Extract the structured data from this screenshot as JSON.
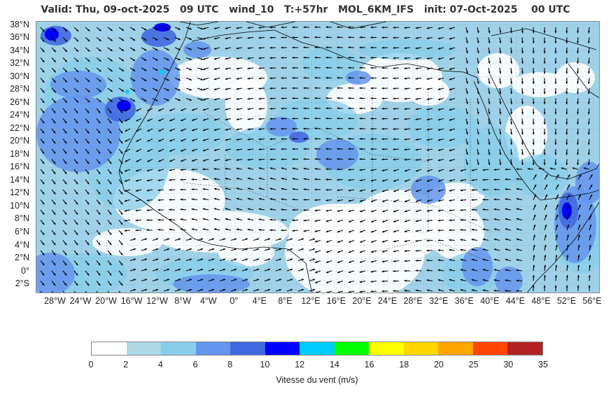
{
  "header": {
    "title": "Valid: Thu, 09-oct-2025   09 UTC   wind_10   T:+57hr   MOL_6KM_IFS   init: 07-Oct-2025    00 UTC"
  },
  "map": {
    "lat_labels": [
      "38°N",
      "36°N",
      "34°N",
      "32°N",
      "30°N",
      "28°N",
      "26°N",
      "24°N",
      "22°N",
      "20°N",
      "18°N",
      "16°N",
      "14°N",
      "12°N",
      "10°N",
      "8°N",
      "6°N",
      "4°N",
      "2°N",
      "0°",
      "2°S"
    ],
    "lon_labels": [
      "28°W",
      "24°W",
      "20°W",
      "16°W",
      "12°W",
      "8°W",
      "4°W",
      "0°",
      "4°E",
      "8°E",
      "12°E",
      "16°E",
      "20°E",
      "24°E",
      "28°E",
      "32°E",
      "36°E",
      "40°E",
      "44°E",
      "48°E",
      "52°E",
      "56°E"
    ],
    "lat_range": [
      -3.5,
      38.5
    ],
    "lon_range": [
      -31,
      57.2
    ]
  },
  "colorbar": {
    "title": "Vitesse du vent (m/s)",
    "ticks": [
      "0",
      "2",
      "4",
      "6",
      "8",
      "10",
      "12",
      "14",
      "16",
      "18",
      "20",
      "25",
      "30",
      "35"
    ],
    "colors": [
      "#ffffff",
      "#add8e6",
      "#87ceeb",
      "#6495ed",
      "#4169e1",
      "#0000ff",
      "#00ccff",
      "#00ff00",
      "#ffff00",
      "#ffd700",
      "#ffa500",
      "#ff4500",
      "#b22222"
    ]
  }
}
